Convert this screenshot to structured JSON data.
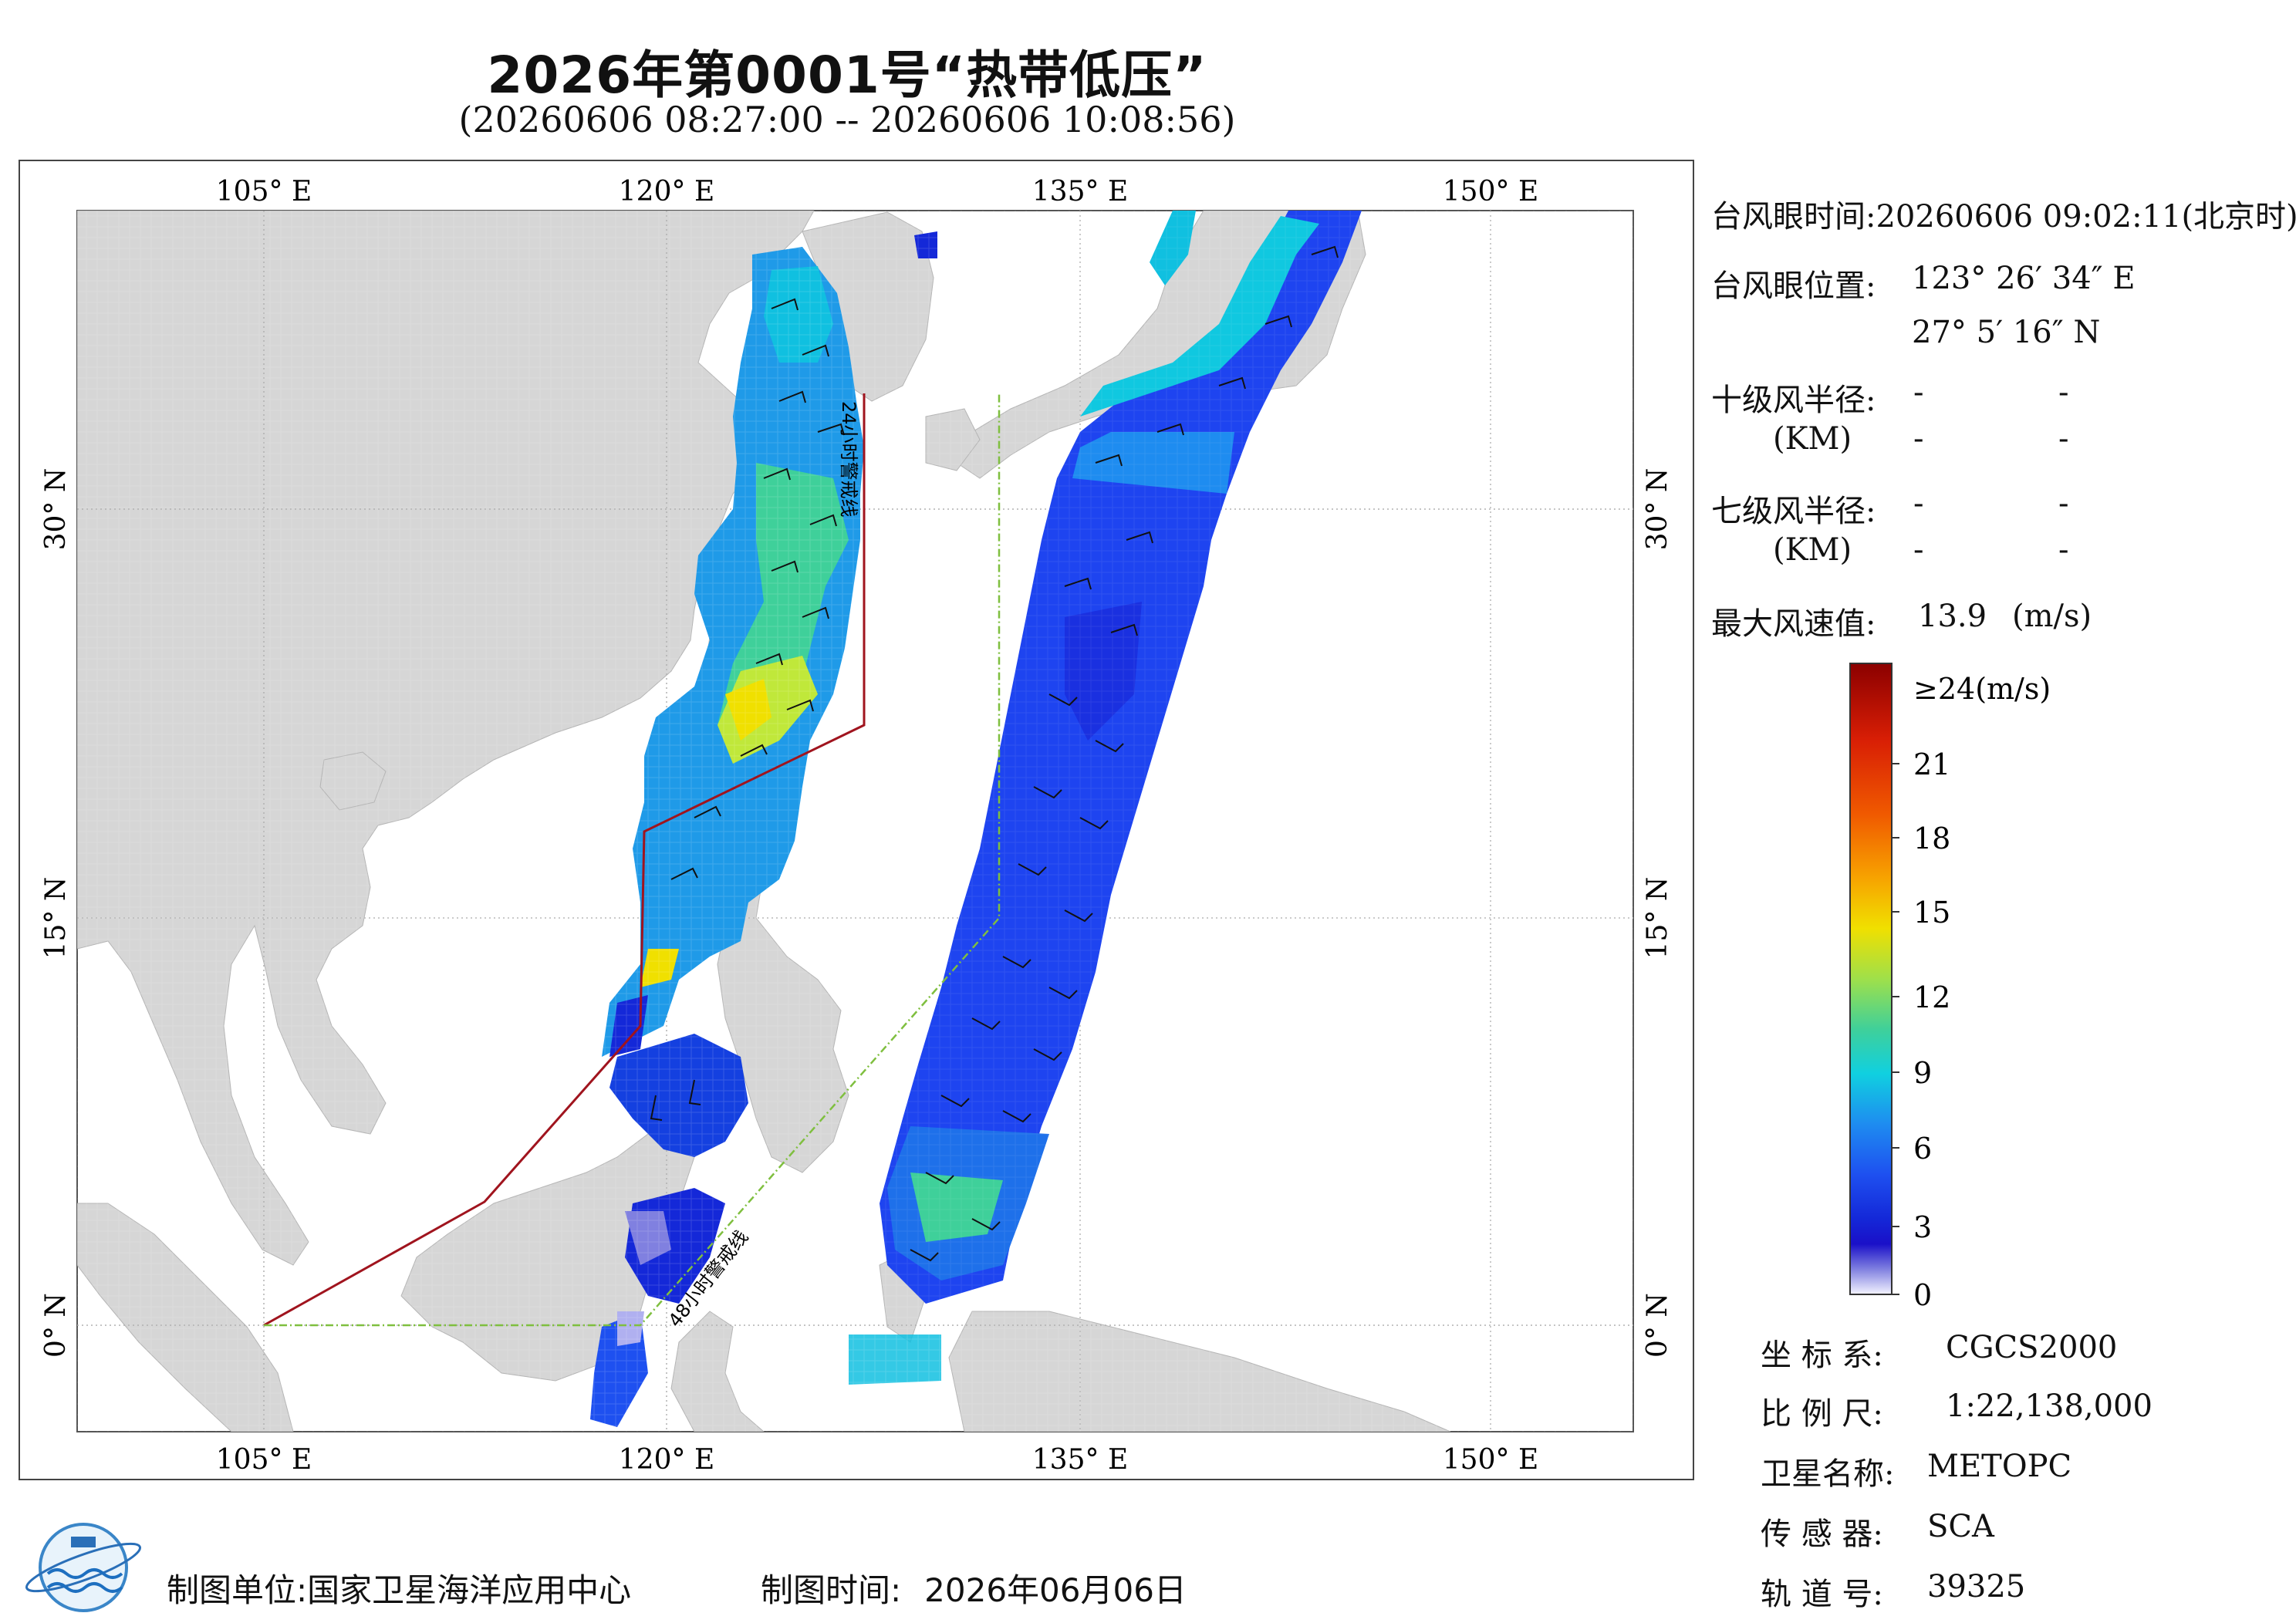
{
  "title": "2026年第0001号“热带低压”",
  "subtitle": "(20260606 08:27:00 -- 20260606 10:08:56)",
  "map": {
    "lon_ticks_top": [
      "105° E",
      "120° E",
      "135° E",
      "150° E"
    ],
    "lon_ticks_bottom": [
      "105° E",
      "120° E",
      "135° E",
      "150° E"
    ],
    "lat_ticks_left": [
      "30° N",
      "15° N",
      "0° N"
    ],
    "lat_ticks_right": [
      "30° N",
      "15° N",
      "0° N"
    ],
    "line_24h_label": "24小时警戒线",
    "line_48h_label": "48小时警戒线",
    "colors": {
      "land": "#d6d6d6",
      "sea": "#ffffff",
      "line_24h": "#a0141e",
      "line_48h": "#7fbf3f"
    }
  },
  "info": {
    "eye_time_label": "台风眼时间:",
    "eye_time_value": "20260606 09:02:11(北京时)",
    "eye_pos_label": "台风眼位置:",
    "eye_pos_lon": "123° 26′ 34″ E",
    "eye_pos_lat": "27° 5′ 16″ N",
    "r10_label": "十级风半径:",
    "r10_unit": "(KM)",
    "r7_label": "七级风半径:",
    "r7_unit": "(KM)",
    "dash": "-",
    "max_wind_label": "最大风速值:",
    "max_wind_value": "13.9",
    "max_wind_unit": "(m/s)"
  },
  "colorbar": {
    "top_label": "≥24(m/s)",
    "ticks": [
      "21",
      "18",
      "15",
      "12",
      "9",
      "6",
      "3",
      "0"
    ],
    "colors": [
      "#8b0000",
      "#d81e05",
      "#f05a00",
      "#f7a300",
      "#f0e000",
      "#9fe04a",
      "#3fd09a",
      "#10d0e0",
      "#1e8cf0",
      "#1e50f0",
      "#1428d8",
      "#1a10c8",
      "#8080e0",
      "#f4f4ff"
    ]
  },
  "meta": {
    "crs_label": "坐 标 系:",
    "crs_value": "CGCS2000",
    "scale_label": "比 例 尺:",
    "scale_value": "1:22,138,000",
    "sat_label": "卫星名称:",
    "sat_value": "METOPC",
    "sensor_label": "传 感 器:",
    "sensor_value": "SCA",
    "orbit_label": "轨 道 号:",
    "orbit_value": "39325"
  },
  "footer": {
    "unit_label": "制图单位:",
    "unit_value": "国家卫星海洋应用中心",
    "time_label": "制图时间:",
    "time_value": "2026年06月06日"
  }
}
